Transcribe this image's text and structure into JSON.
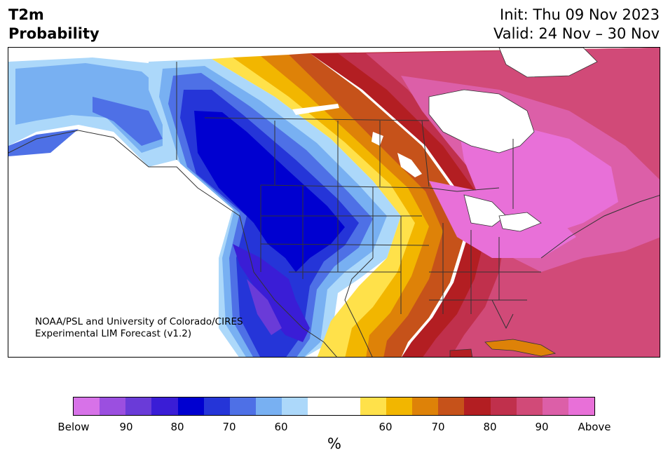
{
  "header": {
    "title_line1": "T2m",
    "title_line2": "Probability",
    "init_text": "Init: Thu 09 Nov 2023",
    "valid_text": "Valid: 24 Nov – 30 Nov"
  },
  "map": {
    "credit_line1": "NOAA/PSL and University of Colorado/CIRES",
    "credit_line2": "Experimental LIM Forecast (v1.2)"
  },
  "colorbar": {
    "unit": "%",
    "colors": [
      "#d772e8",
      "#9b4fe0",
      "#6a3bd8",
      "#3a1dd6",
      "#0000d0",
      "#2535d8",
      "#4e70e6",
      "#78b0f2",
      "#acd8fa",
      "#ffffff",
      "#ffffff",
      "#ffe14a",
      "#f2b600",
      "#de8208",
      "#c6521a",
      "#b31e22",
      "#c0304c",
      "#d14a78",
      "#dc5fa8",
      "#e870d8"
    ],
    "ticks": [
      "Below",
      "90",
      "80",
      "70",
      "60",
      "60",
      "70",
      "80",
      "90",
      "Above"
    ]
  },
  "colors": {
    "below_extreme": "#d772e8",
    "below_strong": "#0000d0",
    "above_strong": "#b31e22",
    "above_extreme": "#e870d8",
    "neutral": "#ffffff",
    "borders": "#333333"
  }
}
